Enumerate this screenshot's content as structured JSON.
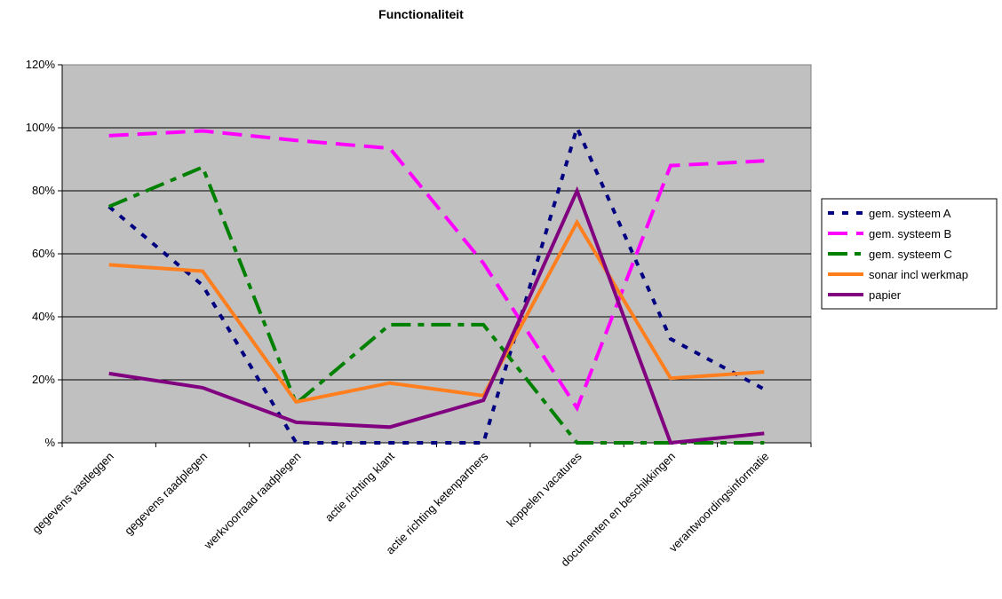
{
  "chart_data": {
    "type": "line",
    "title": "Functionaliteit",
    "xlabel": "",
    "ylabel": "",
    "ylim": [
      0,
      1.2
    ],
    "yticks": [
      0,
      0.2,
      0.4,
      0.6,
      0.8,
      1.0,
      1.2
    ],
    "ytick_labels": [
      "%",
      "20%",
      "40%",
      "60%",
      "80%",
      "100%",
      "120%"
    ],
    "grid": true,
    "legend_position": "right",
    "plot_background": "#c0c0c0",
    "categories": [
      "gegevens vastleggen",
      "gegevens raadplegen",
      "werkvoorraad raadplegen",
      "actie richting klant",
      "actie richting ketenpartners",
      "koppelen vacatures",
      "documenten en beschikkingen",
      "verantwoordingsinformatie"
    ],
    "series": [
      {
        "name": "gem. systeem A",
        "color": "#000080",
        "dash": "dotted",
        "values": [
          0.75,
          0.5,
          0.0,
          0.0,
          0.0,
          1.0,
          0.33,
          0.17
        ]
      },
      {
        "name": "gem. systeem B",
        "color": "#ff00ff",
        "dash": "dashed",
        "values": [
          0.975,
          0.99,
          0.96,
          0.935,
          0.57,
          0.11,
          0.88,
          0.895
        ]
      },
      {
        "name": "gem. systeem C",
        "color": "#008000",
        "dash": "dashdot",
        "values": [
          0.75,
          0.875,
          0.125,
          0.375,
          0.375,
          0.0,
          0.0,
          0.0
        ]
      },
      {
        "name": "sonar incl werkmap",
        "color": "#ff7f1f",
        "dash": "solid",
        "values": [
          0.565,
          0.545,
          0.13,
          0.19,
          0.15,
          0.7,
          0.205,
          0.225
        ]
      },
      {
        "name": "papier",
        "color": "#800080",
        "dash": "solid",
        "values": [
          0.22,
          0.175,
          0.065,
          0.05,
          0.135,
          0.8,
          0.0,
          0.03
        ]
      }
    ]
  }
}
